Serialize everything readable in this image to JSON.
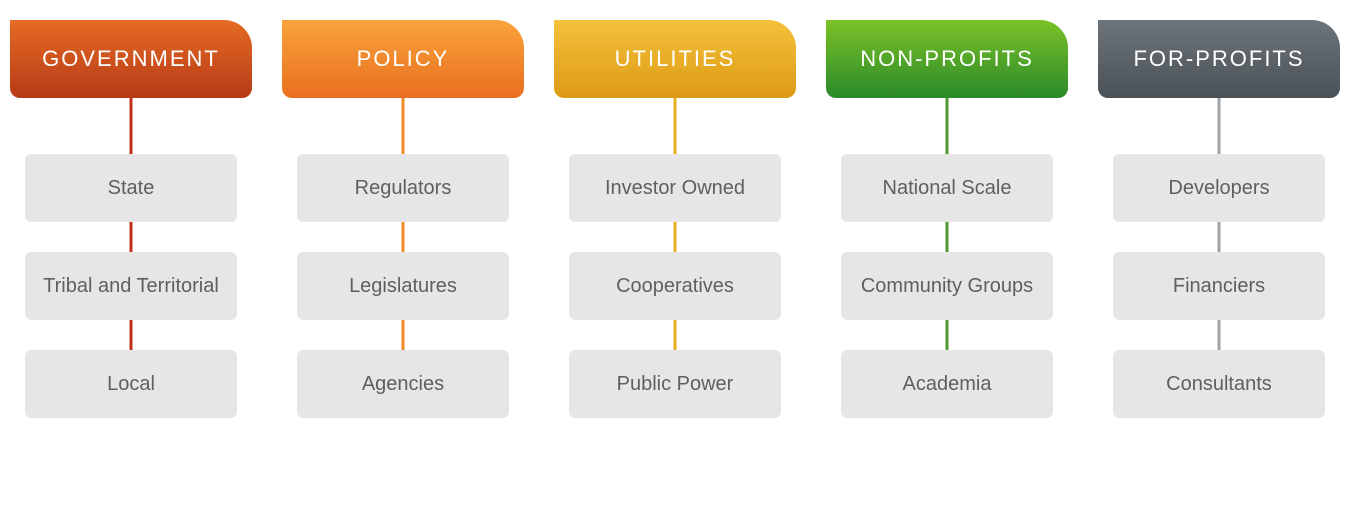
{
  "diagram": {
    "type": "tree",
    "background_color": "#ffffff",
    "item_box": {
      "bg": "#e6e6e6",
      "text_color": "#5f5f5f",
      "fontsize": 20,
      "radius": 6
    },
    "header": {
      "fontsize": 22,
      "text_color": "#ffffff",
      "letter_spacing": 2,
      "height": 78,
      "corner_radius_tr": 28,
      "corner_radius_other": 10
    },
    "columns": [
      {
        "title": "GOVERNMENT",
        "header_gradient_from": "#e66b24",
        "header_gradient_to": "#b63a16",
        "line_color": "#c0311a",
        "items": [
          "State",
          "Tribal and Territorial",
          "Local"
        ]
      },
      {
        "title": "POLICY",
        "header_gradient_from": "#f9a33c",
        "header_gradient_to": "#e96f1f",
        "line_color": "#ee8a2a",
        "items": [
          "Regulators",
          "Legislatures",
          "Agencies"
        ]
      },
      {
        "title": "UTILITIES",
        "header_gradient_from": "#f4c13b",
        "header_gradient_to": "#dd9a15",
        "line_color": "#e7ad23",
        "items": [
          "Investor Owned",
          "Cooperatives",
          "Public Power"
        ]
      },
      {
        "title": "NON-PROFITS",
        "header_gradient_from": "#7cc227",
        "header_gradient_to": "#2a8a2a",
        "line_color": "#4f9b2f",
        "items": [
          "National Scale",
          "Community Groups",
          "Academia"
        ]
      },
      {
        "title": "FOR-PROFITS",
        "header_gradient_from": "#6d757b",
        "header_gradient_to": "#4a5156",
        "line_color": "#9fa3a6",
        "items": [
          "Developers",
          "Financiers",
          "Consultants"
        ]
      }
    ]
  }
}
